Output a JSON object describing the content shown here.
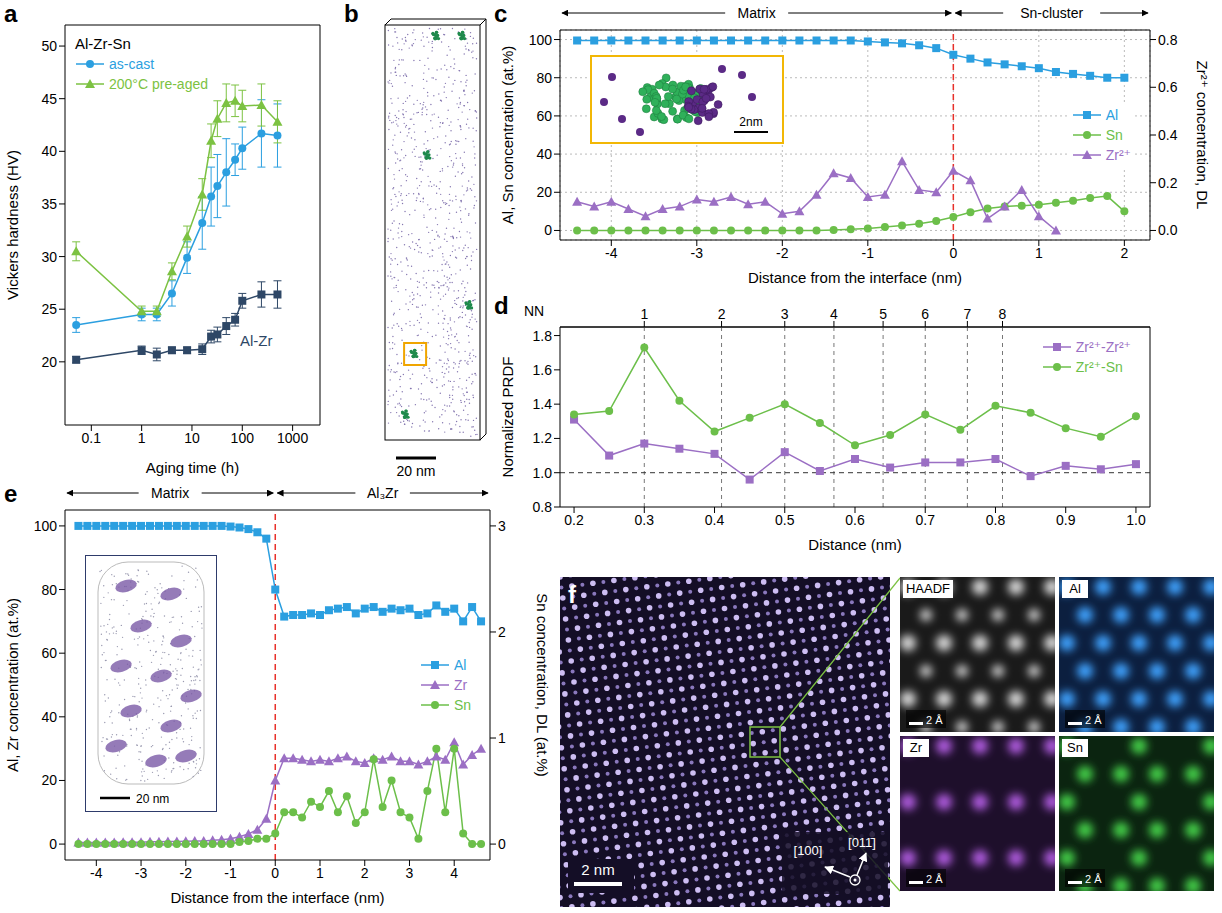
{
  "chart_data": [
    {
      "panel": "a",
      "type": "line",
      "log": "x",
      "x_label": "Aging time (h)",
      "y_label": "Vickers hardness (HV)",
      "xlim": [
        0.03,
        3500
      ],
      "xticks": [
        0.1,
        1,
        10,
        100,
        1000
      ],
      "ylim": [
        14,
        52
      ],
      "yticks": [
        20,
        25,
        30,
        35,
        40,
        45,
        50
      ],
      "legend": "upper left",
      "annotations": [
        "Al-Zr-Sn"
      ],
      "x": [
        0.05,
        1,
        2,
        4,
        8,
        16,
        24,
        32,
        48,
        72,
        100,
        240,
        500
      ],
      "series": [
        {
          "name": "as-cast",
          "color": "#2b9fe0",
          "marker": "circle",
          "values": [
            23.5,
            24.5,
            24.5,
            26.5,
            29.9,
            33.2,
            35.7,
            36.7,
            38.0,
            39.2,
            40.3,
            41.7,
            41.5
          ],
          "errors": [
            0.7,
            0.6,
            0.6,
            1.2,
            1.5,
            2.5,
            2.8,
            3.0,
            3.2,
            1.5,
            2.0,
            3.2,
            3.0
          ]
        },
        {
          "name": "200°C pre-aged",
          "color": "#7cc242",
          "marker": "triangle",
          "values": [
            30.5,
            24.8,
            24.8,
            28.6,
            31.9,
            35.9,
            41.0,
            43.1,
            44.6,
            44.8,
            44.3,
            44.4,
            42.8
          ],
          "errors": [
            0.9,
            0.5,
            0.5,
            0.8,
            1.0,
            1.5,
            1.6,
            1.7,
            1.8,
            1.5,
            1.5,
            2.0,
            2.0
          ]
        },
        {
          "name": "Al-Zr",
          "color": "#2e4766",
          "marker": "square",
          "values": [
            20.2,
            21.1,
            20.7,
            21.1,
            21.1,
            21.2,
            22.4,
            22.6,
            23.4,
            24.0,
            25.8,
            26.4,
            26.4
          ],
          "errors": [
            0.3,
            0.4,
            0.6,
            0.3,
            0.3,
            0.5,
            0.6,
            0.7,
            0.8,
            0.6,
            0.7,
            1.2,
            1.3
          ]
        }
      ]
    },
    {
      "panel": "c",
      "type": "line",
      "grid": true,
      "reference_x": 0,
      "x_label": "Distance from the interface (nm)",
      "y_label": "Al, Sn concentration (at.%)",
      "y2_label": "Zr²⁺ concentration, DL",
      "xlim": [
        -4.6,
        2.3
      ],
      "xticks": [
        -4,
        -3,
        -2,
        -1,
        0,
        1,
        2
      ],
      "ylim": [
        -5,
        105
      ],
      "yticks": [
        0,
        20,
        40,
        60,
        80,
        100
      ],
      "y2lim": [
        -0.04,
        0.84
      ],
      "y2ticks": [
        {
          "value": 0,
          "label": "0.0"
        },
        0.2,
        0.4,
        0.6,
        0.8
      ],
      "legend": "center right",
      "annotations": [
        "Matrix",
        "Sn-cluster",
        "2nm"
      ],
      "x": [
        -4.4,
        -4.2,
        -4.0,
        -3.8,
        -3.6,
        -3.4,
        -3.2,
        -3.0,
        -2.8,
        -2.6,
        -2.4,
        -2.2,
        -2.0,
        -1.8,
        -1.6,
        -1.4,
        -1.2,
        -1.0,
        -0.8,
        -0.6,
        -0.4,
        -0.2,
        0,
        0.2,
        0.4,
        0.6,
        0.8,
        1.0,
        1.2,
        1.4,
        1.6,
        1.8,
        2.0
      ],
      "series": [
        {
          "name": "Al",
          "color": "#2b9fe0",
          "marker": "square",
          "values": [
            99.5,
            99.5,
            99.5,
            99.5,
            99.5,
            99.5,
            99.5,
            99.5,
            99.5,
            99.5,
            99.5,
            99.5,
            99.5,
            99.5,
            99.5,
            99.5,
            99.5,
            99,
            98.5,
            98,
            97,
            95.5,
            92,
            90,
            88,
            87,
            86,
            85,
            83,
            82,
            81,
            80,
            80
          ]
        },
        {
          "name": "Sn",
          "color": "#6cbf4a",
          "marker": "circle",
          "values": [
            0,
            0,
            0,
            0,
            0,
            0,
            0,
            0,
            0,
            0,
            0,
            0,
            0,
            0,
            0,
            0.3,
            0.6,
            1,
            1.8,
            2.6,
            3.5,
            5,
            7,
            9.5,
            11.5,
            12.5,
            13,
            13.5,
            14.5,
            15.5,
            17,
            18,
            10
          ]
        },
        {
          "name": "Zr²⁺",
          "color": "#9b6fc4",
          "marker": "triangle",
          "axis": "y2",
          "values": [
            0.12,
            0.1,
            0.12,
            0.09,
            0.06,
            0.09,
            0.1,
            0.13,
            0.12,
            0.14,
            0.11,
            0.12,
            0.07,
            0.08,
            0.15,
            0.24,
            0.22,
            0.14,
            0.15,
            0.29,
            0.17,
            0.16,
            0.25,
            0.21,
            0.05,
            0.1,
            0.17,
            0.06,
            0.0,
            null,
            null,
            null,
            null
          ]
        }
      ]
    },
    {
      "panel": "d",
      "type": "line",
      "reference_y": 1,
      "x_label": "Distance (nm)",
      "y_label": "Normalized PRDF",
      "top_label": "NN",
      "xlim": [
        0.18,
        1.02
      ],
      "xticks": [
        0.2,
        0.3,
        0.4,
        0.5,
        0.6,
        0.7,
        0.8,
        0.9,
        {
          "value": 1,
          "label": "1.0"
        }
      ],
      "top_ticks": [
        {
          "value": 0.3,
          "label": "1"
        },
        {
          "value": 0.41,
          "label": "2"
        },
        {
          "value": 0.5,
          "label": "3"
        },
        {
          "value": 0.57,
          "label": "4"
        },
        {
          "value": 0.64,
          "label": "5"
        },
        {
          "value": 0.7,
          "label": "6"
        },
        {
          "value": 0.76,
          "label": "7"
        },
        {
          "value": 0.81,
          "label": "8"
        }
      ],
      "ylim": [
        0.8,
        1.85
      ],
      "yticks": [
        0.8,
        {
          "value": 1,
          "label": "1.0"
        },
        1.2,
        1.4,
        1.6,
        1.8
      ],
      "legend": "upper right",
      "x": [
        0.2,
        0.25,
        0.3,
        0.35,
        0.4,
        0.45,
        0.5,
        0.55,
        0.6,
        0.65,
        0.7,
        0.75,
        0.8,
        0.85,
        0.9,
        0.95,
        1.0
      ],
      "series": [
        {
          "name": "Zr²⁺-Zr²⁺",
          "color": "#9b6fc4",
          "marker": "square",
          "values": [
            1.31,
            1.1,
            1.17,
            1.14,
            1.11,
            0.96,
            1.12,
            1.01,
            1.08,
            1.03,
            1.06,
            1.06,
            1.08,
            0.98,
            1.04,
            1.02,
            1.05
          ]
        },
        {
          "name": "Zr²⁺-Sn",
          "color": "#6cbf4a",
          "marker": "circle",
          "values": [
            1.34,
            1.36,
            1.73,
            1.42,
            1.24,
            1.32,
            1.4,
            1.29,
            1.16,
            1.22,
            1.34,
            1.25,
            1.39,
            1.35,
            1.26,
            1.21,
            1.33
          ]
        }
      ]
    },
    {
      "panel": "e",
      "type": "line",
      "reference_x": 0,
      "x_label": "Distance from the interface (nm)",
      "y_label": "Al, Zr concentration (at.%)",
      "y2_label": "Sn concentration, DL (at.%)",
      "xlim": [
        -4.7,
        4.8
      ],
      "xticks": [
        -4,
        -3,
        -2,
        -1,
        0,
        1,
        2,
        3,
        4
      ],
      "ylim": [
        -5,
        105
      ],
      "yticks": [
        0,
        20,
        40,
        60,
        80,
        100
      ],
      "y2lim": [
        -0.15,
        3.15
      ],
      "y2ticks": [
        0,
        1,
        2,
        3
      ],
      "legend": "center right",
      "annotations": [
        "Matrix",
        "Al₃Zr",
        "20 nm"
      ],
      "x": [
        -4.4,
        -4.2,
        -4.0,
        -3.8,
        -3.6,
        -3.4,
        -3.2,
        -3.0,
        -2.8,
        -2.6,
        -2.4,
        -2.2,
        -2.0,
        -1.8,
        -1.6,
        -1.4,
        -1.2,
        -1.0,
        -0.8,
        -0.6,
        -0.4,
        -0.2,
        0,
        0.2,
        0.4,
        0.6,
        0.8,
        1.0,
        1.2,
        1.4,
        1.6,
        1.8,
        2.0,
        2.2,
        2.4,
        2.6,
        2.8,
        3.0,
        3.2,
        3.4,
        3.6,
        3.8,
        4.0,
        4.2,
        4.4,
        4.6
      ],
      "series": [
        {
          "name": "Al",
          "color": "#2b9fe0",
          "marker": "square",
          "values": [
            100,
            100,
            100,
            100,
            100,
            100,
            100,
            100,
            100,
            100,
            100,
            100,
            100,
            100,
            100,
            100,
            100,
            99.8,
            99.5,
            99,
            98,
            96,
            80,
            71.5,
            72,
            72,
            72.5,
            72,
            73.5,
            74,
            74.5,
            72.5,
            74,
            74.5,
            73,
            74,
            73.5,
            74,
            72,
            72.5,
            75,
            73,
            74,
            70,
            74.5,
            70
          ]
        },
        {
          "name": "Zr",
          "color": "#9b6fc4",
          "marker": "triangle",
          "values": [
            0.5,
            0.5,
            0.5,
            0.5,
            0.5,
            0.6,
            0.6,
            0.6,
            0.7,
            0.7,
            0.8,
            0.8,
            0.9,
            1.0,
            1.0,
            1.2,
            1.4,
            1.7,
            2.3,
            3.2,
            4.5,
            8,
            20,
            27,
            27,
            26.5,
            26,
            26.5,
            26,
            27,
            27.5,
            26,
            25.5,
            27,
            26.5,
            27.5,
            26,
            26,
            25,
            26,
            27.5,
            26.5,
            32,
            25,
            28,
            30
          ]
        },
        {
          "name": "Sn",
          "color": "#6cbf4a",
          "marker": "circle",
          "axis": "y2",
          "values": [
            0,
            0,
            0,
            0,
            0,
            0,
            0,
            0,
            0,
            0,
            0,
            0,
            0,
            0,
            0,
            0,
            0,
            0,
            0.02,
            0.03,
            0.05,
            0.05,
            0.1,
            0.3,
            0.3,
            0.25,
            0.4,
            0.35,
            0.5,
            0.3,
            0.45,
            0.2,
            0.3,
            0.8,
            0.35,
            0.6,
            0.3,
            0.25,
            0.05,
            0.5,
            0.9,
            0.3,
            0.9,
            0.1,
            0,
            0
          ]
        }
      ]
    }
  ],
  "images": [
    {
      "panel": "b",
      "scale_bar": "20 nm"
    },
    {
      "panel": "f",
      "scale_bar": "2 nm",
      "directions": [
        "[011̄]",
        "[100]"
      ],
      "maps": [
        "HAADF",
        "Al",
        "Zr",
        "Sn"
      ],
      "map_scale_bar": "2 Å"
    }
  ]
}
